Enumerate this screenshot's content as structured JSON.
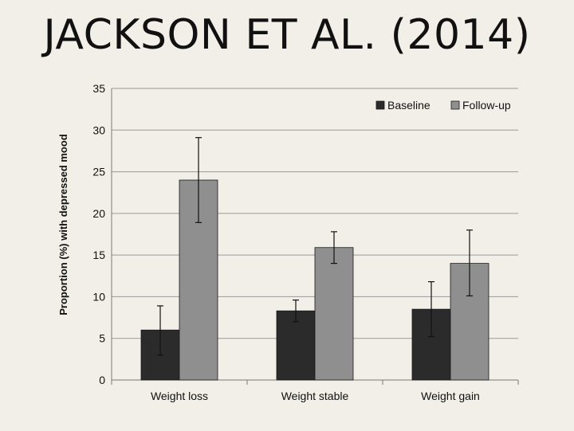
{
  "slide": {
    "title": "JACKSON ET AL. (2014)"
  },
  "chart_data": {
    "type": "bar",
    "categories": [
      "Weight loss",
      "Weight stable",
      "Weight gain"
    ],
    "series": [
      {
        "name": "Baseline",
        "color": "#2b2b2b",
        "values": [
          6.0,
          8.3,
          8.5
        ],
        "error_low": [
          3.0,
          7.0,
          5.2
        ],
        "error_high": [
          8.9,
          9.6,
          11.8
        ]
      },
      {
        "name": "Follow-up",
        "color": "#8f8f8f",
        "values": [
          24.0,
          15.9,
          14.0
        ],
        "error_low": [
          18.9,
          14.0,
          10.1
        ],
        "error_high": [
          29.1,
          17.8,
          18.0
        ]
      }
    ],
    "ylabel": "Proportion (%) with depressed mood",
    "xlabel": "",
    "ylim": [
      0,
      35
    ],
    "yticks": [
      0,
      5,
      10,
      15,
      20,
      25,
      30,
      35
    ],
    "grid": true,
    "legend": "top-right"
  }
}
